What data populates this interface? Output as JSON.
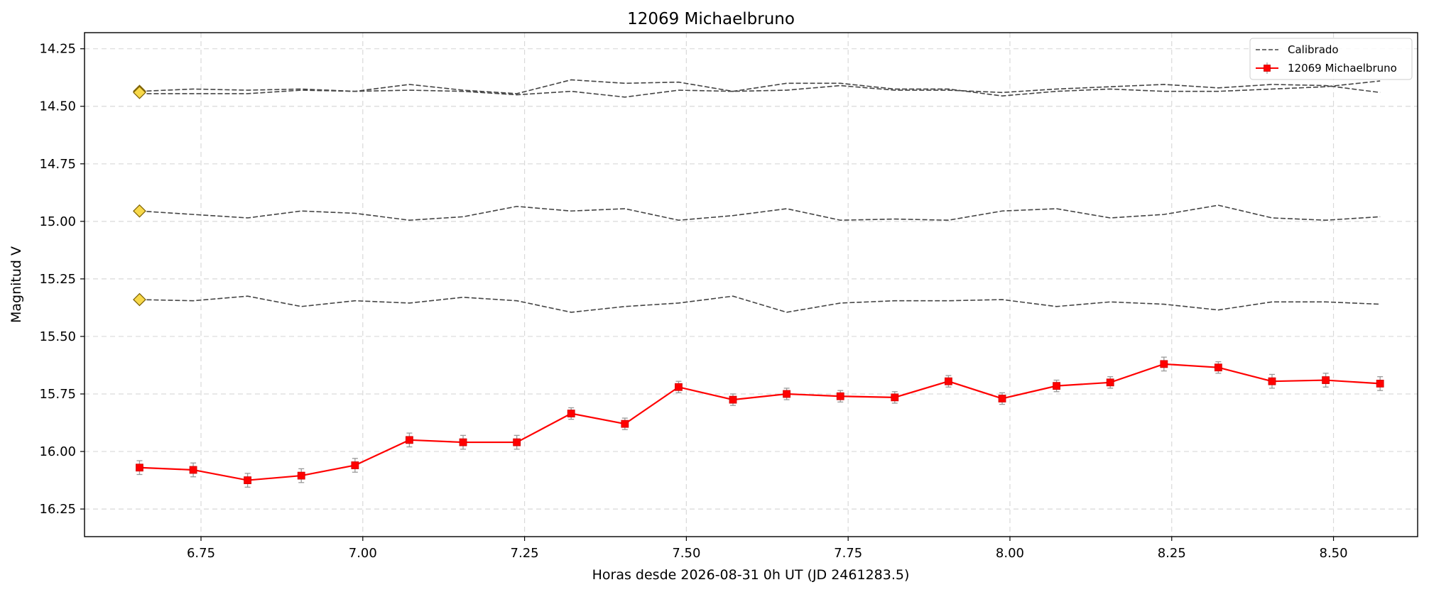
{
  "chart_data": {
    "type": "line",
    "title": "12069 Michaelbruno",
    "xlabel": "Horas desde 2026-08-31 0h UT (JD 2461283.5)",
    "ylabel": "Magnitud V",
    "xlim": [
      6.57,
      8.63
    ],
    "ylim": [
      16.37,
      14.18
    ],
    "y_inverted": true,
    "grid": true,
    "legend_position": "top-right",
    "x_ticks": [
      6.75,
      7.0,
      7.25,
      7.5,
      7.75,
      8.0,
      8.25,
      8.5
    ],
    "x_tick_labels": [
      "6.75",
      "7.00",
      "7.25",
      "7.50",
      "7.75",
      "8.00",
      "8.25",
      "8.50"
    ],
    "y_ticks": [
      14.25,
      14.5,
      14.75,
      15.0,
      15.25,
      15.5,
      15.75,
      16.0,
      16.25
    ],
    "y_tick_labels": [
      "14.25",
      "14.50",
      "14.75",
      "15.00",
      "15.25",
      "15.50",
      "15.75",
      "16.00",
      "16.25"
    ],
    "x": [
      6.655,
      6.738,
      6.822,
      6.905,
      6.988,
      7.072,
      7.155,
      7.238,
      7.322,
      7.405,
      7.488,
      7.572,
      7.655,
      7.738,
      7.822,
      7.905,
      7.988,
      8.072,
      8.155,
      8.238,
      8.322,
      8.405,
      8.488,
      8.572
    ],
    "series": [
      {
        "name": "12069 Michaelbruno",
        "color": "#ff0000",
        "marker": "square",
        "values": [
          16.07,
          16.08,
          16.125,
          16.105,
          16.06,
          15.95,
          15.96,
          15.96,
          15.835,
          15.88,
          15.72,
          15.775,
          15.75,
          15.76,
          15.765,
          15.695,
          15.77,
          15.715,
          15.7,
          15.62,
          15.635,
          15.695,
          15.69,
          15.705
        ],
        "errors": [
          0.03,
          0.03,
          0.03,
          0.03,
          0.03,
          0.03,
          0.03,
          0.03,
          0.025,
          0.025,
          0.025,
          0.025,
          0.025,
          0.025,
          0.025,
          0.025,
          0.025,
          0.025,
          0.025,
          0.03,
          0.025,
          0.03,
          0.03,
          0.03
        ]
      }
    ],
    "calibration_series": [
      {
        "name": "Calibrado",
        "color": "#444444",
        "values": [
          14.435,
          14.425,
          14.43,
          14.425,
          14.435,
          14.405,
          14.43,
          14.445,
          14.385,
          14.4,
          14.395,
          14.435,
          14.4,
          14.4,
          14.425,
          14.425,
          14.455,
          14.435,
          14.425,
          14.435,
          14.435,
          14.425,
          14.415,
          14.39
        ]
      },
      {
        "name": "",
        "color": "#444444",
        "values": [
          14.445,
          14.445,
          14.445,
          14.43,
          14.435,
          14.43,
          14.435,
          14.45,
          14.435,
          14.46,
          14.43,
          14.435,
          14.43,
          14.41,
          14.43,
          14.43,
          14.44,
          14.425,
          14.415,
          14.405,
          14.42,
          14.405,
          14.41,
          14.44
        ]
      },
      {
        "name": "",
        "color": "#444444",
        "values": [
          14.955,
          14.97,
          14.985,
          14.955,
          14.965,
          14.995,
          14.98,
          14.935,
          14.955,
          14.945,
          14.995,
          14.975,
          14.945,
          14.995,
          14.99,
          14.995,
          14.955,
          14.945,
          14.985,
          14.97,
          14.93,
          14.985,
          14.995,
          14.98
        ]
      },
      {
        "name": "",
        "color": "#444444",
        "values": [
          15.34,
          15.345,
          15.325,
          15.37,
          15.345,
          15.355,
          15.33,
          15.345,
          15.395,
          15.37,
          15.355,
          15.325,
          15.395,
          15.355,
          15.345,
          15.345,
          15.34,
          15.37,
          15.35,
          15.36,
          15.385,
          15.35,
          15.35,
          15.36
        ]
      }
    ],
    "reference_markers": [
      {
        "x": 6.655,
        "y": 14.435,
        "color": "#f7d84a"
      },
      {
        "x": 6.655,
        "y": 14.44,
        "color": "#f7d84a"
      },
      {
        "x": 6.655,
        "y": 14.955,
        "color": "#f7d84a"
      },
      {
        "x": 6.655,
        "y": 15.34,
        "color": "#f7d84a"
      }
    ],
    "legend": [
      {
        "label": "Calibrado",
        "style": "dashed",
        "color": "#444444"
      },
      {
        "label": "12069 Michaelbruno",
        "style": "line-square",
        "color": "#ff0000"
      }
    ]
  }
}
